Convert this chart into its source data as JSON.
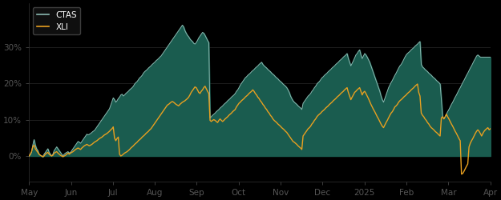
{
  "background_color": "#000000",
  "plot_bg_color": "#000000",
  "fill_color": "#1a5c4f",
  "ctas_line_color": "#8ab8b0",
  "xli_line_color": "#e8a020",
  "ylim": [
    -0.07,
    0.42
  ],
  "yticks": [
    0.0,
    0.1,
    0.2,
    0.3
  ],
  "ytick_labels": [
    "0%",
    "10%",
    "20%",
    "30%"
  ],
  "xtick_labels": [
    "May",
    "Jun",
    "Jul",
    "Aug",
    "Sep",
    "Oct",
    "Nov",
    "Dec",
    "2025",
    "Feb",
    "Mar",
    "Apr"
  ],
  "legend_labels": [
    "CTAS",
    "XLI"
  ],
  "ctas_data": [
    0.0,
    0.003,
    0.01,
    0.03,
    0.045,
    0.03,
    0.02,
    0.015,
    0.005,
    0.002,
    0.0,
    -0.002,
    0.005,
    0.01,
    0.015,
    0.02,
    0.01,
    0.005,
    0.0,
    0.005,
    0.015,
    0.02,
    0.025,
    0.02,
    0.015,
    0.01,
    0.005,
    0.0,
    0.005,
    0.008,
    0.01,
    0.012,
    0.008,
    0.01,
    0.015,
    0.02,
    0.025,
    0.03,
    0.035,
    0.04,
    0.038,
    0.035,
    0.04,
    0.045,
    0.05,
    0.055,
    0.06,
    0.058,
    0.06,
    0.062,
    0.065,
    0.068,
    0.07,
    0.075,
    0.08,
    0.085,
    0.09,
    0.095,
    0.1,
    0.105,
    0.11,
    0.115,
    0.12,
    0.125,
    0.13,
    0.14,
    0.15,
    0.16,
    0.155,
    0.148,
    0.152,
    0.158,
    0.162,
    0.168,
    0.17,
    0.165,
    0.168,
    0.172,
    0.175,
    0.178,
    0.182,
    0.185,
    0.188,
    0.192,
    0.198,
    0.202,
    0.205,
    0.21,
    0.215,
    0.218,
    0.222,
    0.228,
    0.232,
    0.235,
    0.238,
    0.242,
    0.245,
    0.248,
    0.252,
    0.255,
    0.258,
    0.262,
    0.265,
    0.268,
    0.272,
    0.275,
    0.28,
    0.285,
    0.29,
    0.295,
    0.3,
    0.305,
    0.31,
    0.315,
    0.32,
    0.325,
    0.33,
    0.335,
    0.34,
    0.345,
    0.35,
    0.355,
    0.36,
    0.355,
    0.345,
    0.338,
    0.332,
    0.328,
    0.322,
    0.318,
    0.315,
    0.31,
    0.308,
    0.312,
    0.318,
    0.325,
    0.33,
    0.335,
    0.34,
    0.338,
    0.332,
    0.325,
    0.318,
    0.312,
    0.105,
    0.108,
    0.112,
    0.115,
    0.118,
    0.122,
    0.125,
    0.128,
    0.132,
    0.135,
    0.138,
    0.142,
    0.145,
    0.148,
    0.152,
    0.155,
    0.158,
    0.162,
    0.165,
    0.168,
    0.172,
    0.178,
    0.182,
    0.188,
    0.195,
    0.2,
    0.205,
    0.21,
    0.215,
    0.218,
    0.222,
    0.225,
    0.228,
    0.232,
    0.235,
    0.238,
    0.242,
    0.245,
    0.248,
    0.252,
    0.255,
    0.258,
    0.252,
    0.248,
    0.245,
    0.242,
    0.238,
    0.235,
    0.232,
    0.228,
    0.225,
    0.222,
    0.218,
    0.215,
    0.212,
    0.208,
    0.205,
    0.202,
    0.198,
    0.195,
    0.192,
    0.188,
    0.182,
    0.175,
    0.165,
    0.158,
    0.152,
    0.148,
    0.145,
    0.142,
    0.138,
    0.135,
    0.132,
    0.128,
    0.145,
    0.15,
    0.155,
    0.16,
    0.165,
    0.168,
    0.172,
    0.178,
    0.182,
    0.188,
    0.192,
    0.198,
    0.202,
    0.205,
    0.21,
    0.215,
    0.218,
    0.222,
    0.225,
    0.228,
    0.232,
    0.235,
    0.238,
    0.242,
    0.245,
    0.248,
    0.252,
    0.255,
    0.258,
    0.262,
    0.265,
    0.268,
    0.272,
    0.275,
    0.278,
    0.282,
    0.268,
    0.258,
    0.248,
    0.255,
    0.262,
    0.27,
    0.278,
    0.282,
    0.288,
    0.292,
    0.278,
    0.268,
    0.275,
    0.282,
    0.278,
    0.272,
    0.265,
    0.258,
    0.248,
    0.238,
    0.228,
    0.218,
    0.208,
    0.198,
    0.188,
    0.178,
    0.165,
    0.155,
    0.148,
    0.158,
    0.168,
    0.178,
    0.188,
    0.195,
    0.202,
    0.208,
    0.215,
    0.222,
    0.228,
    0.235,
    0.242,
    0.248,
    0.252,
    0.258,
    0.265,
    0.272,
    0.278,
    0.282,
    0.285,
    0.288,
    0.292,
    0.295,
    0.298,
    0.302,
    0.305,
    0.308,
    0.312,
    0.315,
    0.252,
    0.245,
    0.242,
    0.238,
    0.235,
    0.232,
    0.228,
    0.225,
    0.222,
    0.218,
    0.215,
    0.212,
    0.208,
    0.205,
    0.202,
    0.198,
    0.155,
    0.108,
    0.102,
    0.108,
    0.115,
    0.122,
    0.128,
    0.135,
    0.142,
    0.148,
    0.155,
    0.162,
    0.168,
    0.175,
    0.182,
    0.188,
    0.195,
    0.202,
    0.208,
    0.215,
    0.222,
    0.228,
    0.235,
    0.242,
    0.248,
    0.255,
    0.262,
    0.268,
    0.275,
    0.278,
    0.275,
    0.272
  ],
  "xli_data": [
    0.0,
    0.005,
    0.012,
    0.025,
    0.03,
    0.02,
    0.015,
    0.01,
    0.005,
    0.002,
    0.0,
    -0.002,
    0.0,
    0.005,
    0.008,
    0.01,
    0.005,
    0.002,
    0.0,
    0.002,
    0.008,
    0.01,
    0.012,
    0.008,
    0.005,
    0.002,
    0.0,
    -0.002,
    0.0,
    0.002,
    0.005,
    0.008,
    0.005,
    0.008,
    0.01,
    0.012,
    0.015,
    0.018,
    0.02,
    0.022,
    0.02,
    0.018,
    0.022,
    0.025,
    0.028,
    0.03,
    0.032,
    0.03,
    0.028,
    0.03,
    0.032,
    0.035,
    0.038,
    0.04,
    0.042,
    0.045,
    0.048,
    0.05,
    0.052,
    0.055,
    0.058,
    0.06,
    0.062,
    0.065,
    0.068,
    0.072,
    0.075,
    0.08,
    0.05,
    0.042,
    0.048,
    0.052,
    0.005,
    0.0,
    0.002,
    0.005,
    0.008,
    0.01,
    0.012,
    0.015,
    0.018,
    0.022,
    0.025,
    0.028,
    0.032,
    0.035,
    0.038,
    0.042,
    0.045,
    0.048,
    0.052,
    0.055,
    0.058,
    0.062,
    0.065,
    0.068,
    0.072,
    0.075,
    0.08,
    0.085,
    0.09,
    0.095,
    0.1,
    0.105,
    0.11,
    0.115,
    0.12,
    0.125,
    0.13,
    0.135,
    0.14,
    0.142,
    0.145,
    0.148,
    0.15,
    0.148,
    0.145,
    0.142,
    0.14,
    0.138,
    0.142,
    0.145,
    0.148,
    0.15,
    0.152,
    0.155,
    0.158,
    0.162,
    0.168,
    0.175,
    0.18,
    0.185,
    0.19,
    0.188,
    0.182,
    0.175,
    0.172,
    0.178,
    0.182,
    0.188,
    0.192,
    0.185,
    0.178,
    0.172,
    0.098,
    0.095,
    0.098,
    0.1,
    0.098,
    0.095,
    0.092,
    0.098,
    0.102,
    0.098,
    0.095,
    0.098,
    0.102,
    0.105,
    0.108,
    0.112,
    0.115,
    0.118,
    0.122,
    0.125,
    0.128,
    0.135,
    0.14,
    0.145,
    0.148,
    0.152,
    0.155,
    0.158,
    0.162,
    0.165,
    0.168,
    0.172,
    0.175,
    0.178,
    0.182,
    0.178,
    0.172,
    0.168,
    0.162,
    0.158,
    0.152,
    0.148,
    0.142,
    0.138,
    0.132,
    0.128,
    0.122,
    0.118,
    0.112,
    0.108,
    0.102,
    0.098,
    0.095,
    0.092,
    0.088,
    0.085,
    0.082,
    0.078,
    0.075,
    0.072,
    0.068,
    0.065,
    0.06,
    0.055,
    0.05,
    0.045,
    0.04,
    0.038,
    0.035,
    0.032,
    0.028,
    0.025,
    0.022,
    0.018,
    0.055,
    0.06,
    0.065,
    0.07,
    0.075,
    0.078,
    0.082,
    0.088,
    0.092,
    0.098,
    0.102,
    0.108,
    0.112,
    0.115,
    0.118,
    0.122,
    0.125,
    0.128,
    0.132,
    0.135,
    0.138,
    0.142,
    0.145,
    0.148,
    0.152,
    0.155,
    0.158,
    0.162,
    0.165,
    0.168,
    0.172,
    0.175,
    0.178,
    0.182,
    0.185,
    0.188,
    0.175,
    0.165,
    0.155,
    0.162,
    0.168,
    0.175,
    0.178,
    0.182,
    0.185,
    0.188,
    0.178,
    0.168,
    0.175,
    0.178,
    0.172,
    0.165,
    0.158,
    0.15,
    0.142,
    0.135,
    0.128,
    0.122,
    0.115,
    0.108,
    0.102,
    0.095,
    0.088,
    0.082,
    0.078,
    0.085,
    0.092,
    0.098,
    0.105,
    0.112,
    0.118,
    0.122,
    0.128,
    0.135,
    0.138,
    0.142,
    0.148,
    0.152,
    0.155,
    0.158,
    0.162,
    0.165,
    0.168,
    0.172,
    0.175,
    0.178,
    0.182,
    0.185,
    0.188,
    0.192,
    0.195,
    0.198,
    0.175,
    0.165,
    0.118,
    0.112,
    0.108,
    0.102,
    0.098,
    0.092,
    0.088,
    0.082,
    0.078,
    0.075,
    0.072,
    0.068,
    0.065,
    0.062,
    0.058,
    0.055,
    0.105,
    0.108,
    0.102,
    0.108,
    0.115,
    0.108,
    0.102,
    0.095,
    0.088,
    0.082,
    0.075,
    0.068,
    0.062,
    0.055,
    0.048,
    0.042,
    -0.05,
    -0.048,
    -0.042,
    -0.035,
    -0.028,
    -0.022,
    0.025,
    0.035,
    0.042,
    0.048,
    0.055,
    0.062,
    0.068,
    0.072,
    0.068,
    0.062,
    0.055,
    0.062,
    0.068,
    0.072,
    0.075,
    0.078,
    0.072,
    0.075
  ]
}
